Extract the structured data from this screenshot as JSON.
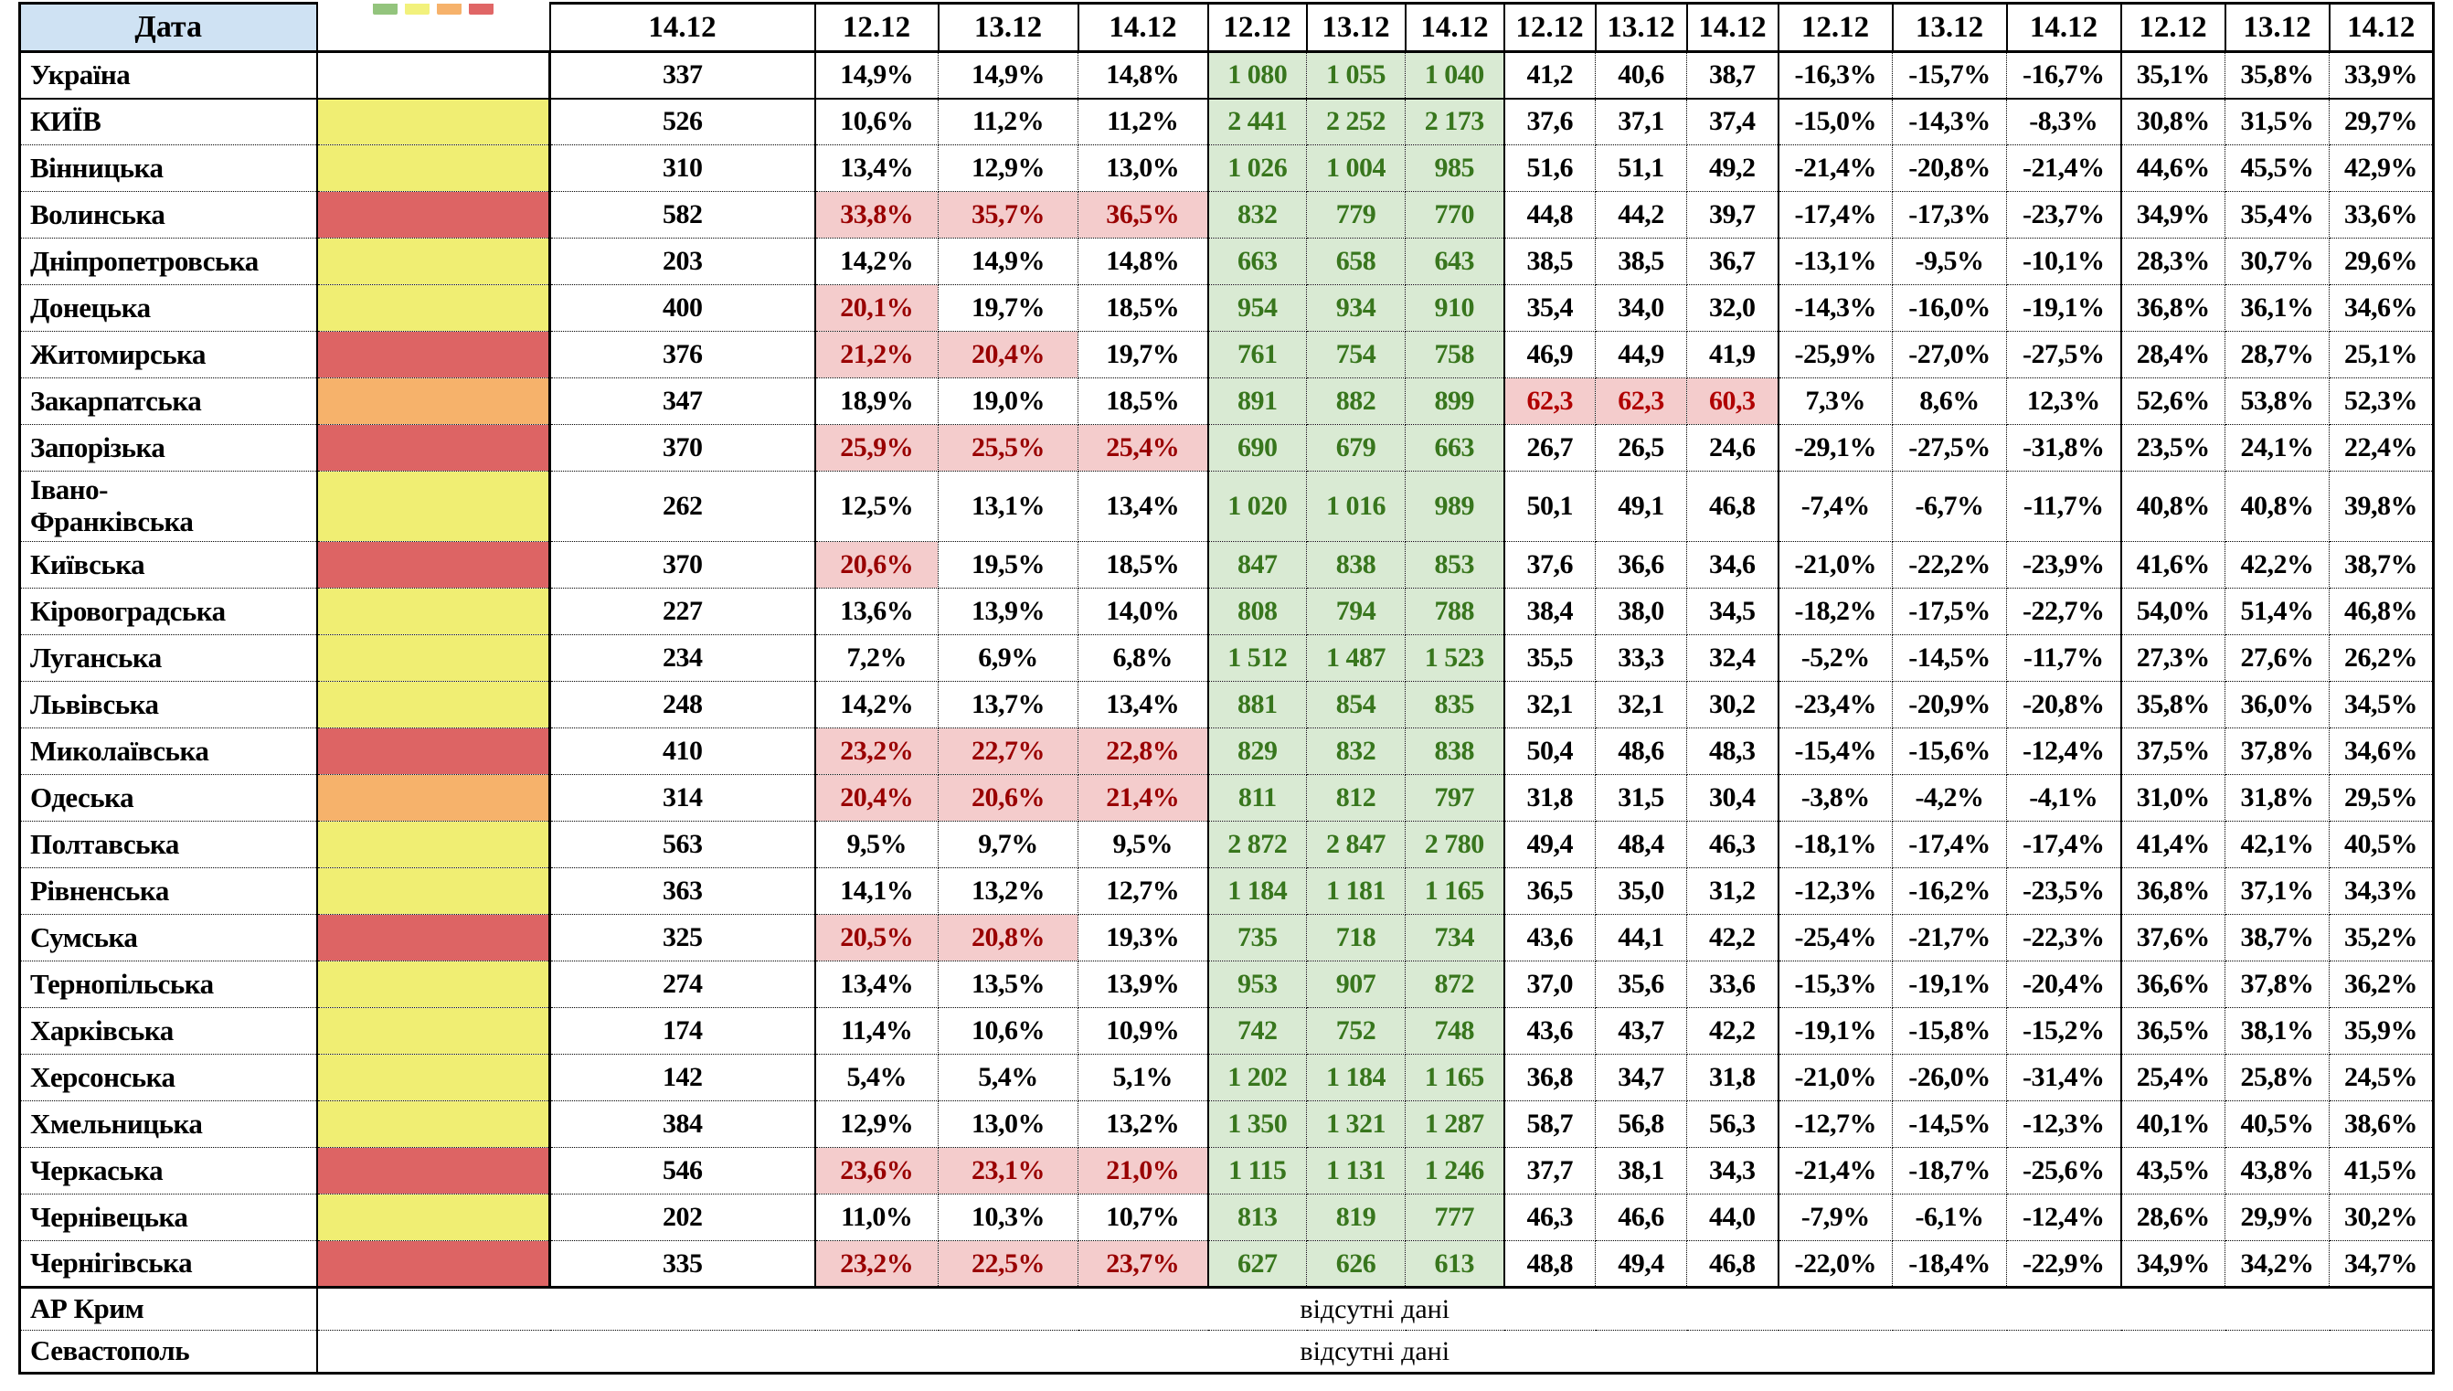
{
  "title_cell": "Дата",
  "no_data_text": "відсутні дані",
  "legend_colors": [
    "#93c47d",
    "#f2f17c",
    "#f6b26b",
    "#e06666"
  ],
  "palette": {
    "header_blue": "#cfe2f3",
    "yellow": "#f0ee73",
    "red": "#dd6464",
    "orange": "#f6b26b",
    "pink": "#f4cccc",
    "green_bg": "#d9ead3",
    "green_text": "#38761d",
    "dark_red_text": "#990000",
    "mid_red_text": "#b00000"
  },
  "thresholds": {
    "pct_hot": 20,
    "mid_hot": 60
  },
  "header": {
    "count_date": "14.12",
    "group_dates": [
      "12.12",
      "13.12",
      "14.12"
    ]
  },
  "total_row": {
    "name": "Україна",
    "color": "none",
    "count": "337",
    "pct": [
      "14,9%",
      "14,9%",
      "14,8%"
    ],
    "cases": [
      "1 080",
      "1 055",
      "1 040"
    ],
    "mid": [
      "41,2",
      "40,6",
      "38,7"
    ],
    "chg": [
      "-16,3%",
      "-15,7%",
      "-16,7%"
    ],
    "share": [
      "35,1%",
      "35,8%",
      "33,9%"
    ]
  },
  "rows": [
    {
      "name": "КИЇВ",
      "color": "yellow",
      "count": "526",
      "pct": [
        "10,6%",
        "11,2%",
        "11,2%"
      ],
      "cases": [
        "2 441",
        "2 252",
        "2 173"
      ],
      "mid": [
        "37,6",
        "37,1",
        "37,4"
      ],
      "chg": [
        "-15,0%",
        "-14,3%",
        "-8,3%"
      ],
      "share": [
        "30,8%",
        "31,5%",
        "29,7%"
      ]
    },
    {
      "name": "Вінницька",
      "color": "yellow",
      "count": "310",
      "pct": [
        "13,4%",
        "12,9%",
        "13,0%"
      ],
      "cases": [
        "1 026",
        "1 004",
        "985"
      ],
      "mid": [
        "51,6",
        "51,1",
        "49,2"
      ],
      "chg": [
        "-21,4%",
        "-20,8%",
        "-21,4%"
      ],
      "share": [
        "44,6%",
        "45,5%",
        "42,9%"
      ]
    },
    {
      "name": "Волинська",
      "color": "red",
      "count": "582",
      "pct": [
        "33,8%",
        "35,7%",
        "36,5%"
      ],
      "cases": [
        "832",
        "779",
        "770"
      ],
      "mid": [
        "44,8",
        "44,2",
        "39,7"
      ],
      "chg": [
        "-17,4%",
        "-17,3%",
        "-23,7%"
      ],
      "share": [
        "34,9%",
        "35,4%",
        "33,6%"
      ]
    },
    {
      "name": "Дніпропетровська",
      "color": "yellow",
      "count": "203",
      "pct": [
        "14,2%",
        "14,9%",
        "14,8%"
      ],
      "cases": [
        "663",
        "658",
        "643"
      ],
      "mid": [
        "38,5",
        "38,5",
        "36,7"
      ],
      "chg": [
        "-13,1%",
        "-9,5%",
        "-10,1%"
      ],
      "share": [
        "28,3%",
        "30,7%",
        "29,6%"
      ]
    },
    {
      "name": "Донецька",
      "color": "yellow",
      "count": "400",
      "pct": [
        "20,1%",
        "19,7%",
        "18,5%"
      ],
      "cases": [
        "954",
        "934",
        "910"
      ],
      "mid": [
        "35,4",
        "34,0",
        "32,0"
      ],
      "chg": [
        "-14,3%",
        "-16,0%",
        "-19,1%"
      ],
      "share": [
        "36,8%",
        "36,1%",
        "34,6%"
      ]
    },
    {
      "name": "Житомирська",
      "color": "red",
      "count": "376",
      "pct": [
        "21,2%",
        "20,4%",
        "19,7%"
      ],
      "cases": [
        "761",
        "754",
        "758"
      ],
      "mid": [
        "46,9",
        "44,9",
        "41,9"
      ],
      "chg": [
        "-25,9%",
        "-27,0%",
        "-27,5%"
      ],
      "share": [
        "28,4%",
        "28,7%",
        "25,1%"
      ]
    },
    {
      "name": "Закарпатська",
      "color": "orange",
      "count": "347",
      "pct": [
        "18,9%",
        "19,0%",
        "18,5%"
      ],
      "cases": [
        "891",
        "882",
        "899"
      ],
      "mid": [
        "62,3",
        "62,3",
        "60,3"
      ],
      "chg": [
        "7,3%",
        "8,6%",
        "12,3%"
      ],
      "share": [
        "52,6%",
        "53,8%",
        "52,3%"
      ]
    },
    {
      "name": "Запорізька",
      "color": "red",
      "count": "370",
      "pct": [
        "25,9%",
        "25,5%",
        "25,4%"
      ],
      "cases": [
        "690",
        "679",
        "663"
      ],
      "mid": [
        "26,7",
        "26,5",
        "24,6"
      ],
      "chg": [
        "-29,1%",
        "-27,5%",
        "-31,8%"
      ],
      "share": [
        "23,5%",
        "24,1%",
        "22,4%"
      ]
    },
    {
      "name": "Івано-\nФранківська",
      "color": "yellow",
      "count": "262",
      "pct": [
        "12,5%",
        "13,1%",
        "13,4%"
      ],
      "cases": [
        "1 020",
        "1 016",
        "989"
      ],
      "mid": [
        "50,1",
        "49,1",
        "46,8"
      ],
      "chg": [
        "-7,4%",
        "-6,7%",
        "-11,7%"
      ],
      "share": [
        "40,8%",
        "40,8%",
        "39,8%"
      ]
    },
    {
      "name": "Київська",
      "color": "red",
      "count": "370",
      "pct": [
        "20,6%",
        "19,5%",
        "18,5%"
      ],
      "cases": [
        "847",
        "838",
        "853"
      ],
      "mid": [
        "37,6",
        "36,6",
        "34,6"
      ],
      "chg": [
        "-21,0%",
        "-22,2%",
        "-23,9%"
      ],
      "share": [
        "41,6%",
        "42,2%",
        "38,7%"
      ]
    },
    {
      "name": "Кіровоградська",
      "color": "yellow",
      "count": "227",
      "pct": [
        "13,6%",
        "13,9%",
        "14,0%"
      ],
      "cases": [
        "808",
        "794",
        "788"
      ],
      "mid": [
        "38,4",
        "38,0",
        "34,5"
      ],
      "chg": [
        "-18,2%",
        "-17,5%",
        "-22,7%"
      ],
      "share": [
        "54,0%",
        "51,4%",
        "46,8%"
      ]
    },
    {
      "name": "Луганська",
      "color": "yellow",
      "count": "234",
      "pct": [
        "7,2%",
        "6,9%",
        "6,8%"
      ],
      "cases": [
        "1 512",
        "1 487",
        "1 523"
      ],
      "mid": [
        "35,5",
        "33,3",
        "32,4"
      ],
      "chg": [
        "-5,2%",
        "-14,5%",
        "-11,7%"
      ],
      "share": [
        "27,3%",
        "27,6%",
        "26,2%"
      ]
    },
    {
      "name": "Львівська",
      "color": "yellow",
      "count": "248",
      "pct": [
        "14,2%",
        "13,7%",
        "13,4%"
      ],
      "cases": [
        "881",
        "854",
        "835"
      ],
      "mid": [
        "32,1",
        "32,1",
        "30,2"
      ],
      "chg": [
        "-23,4%",
        "-20,9%",
        "-20,8%"
      ],
      "share": [
        "35,8%",
        "36,0%",
        "34,5%"
      ]
    },
    {
      "name": "Миколаївська",
      "color": "red",
      "count": "410",
      "pct": [
        "23,2%",
        "22,7%",
        "22,8%"
      ],
      "cases": [
        "829",
        "832",
        "838"
      ],
      "mid": [
        "50,4",
        "48,6",
        "48,3"
      ],
      "chg": [
        "-15,4%",
        "-15,6%",
        "-12,4%"
      ],
      "share": [
        "37,5%",
        "37,8%",
        "34,6%"
      ]
    },
    {
      "name": "Одеська",
      "color": "orange",
      "count": "314",
      "pct": [
        "20,4%",
        "20,6%",
        "21,4%"
      ],
      "cases": [
        "811",
        "812",
        "797"
      ],
      "mid": [
        "31,8",
        "31,5",
        "30,4"
      ],
      "chg": [
        "-3,8%",
        "-4,2%",
        "-4,1%"
      ],
      "share": [
        "31,0%",
        "31,8%",
        "29,5%"
      ]
    },
    {
      "name": "Полтавська",
      "color": "yellow",
      "count": "563",
      "pct": [
        "9,5%",
        "9,7%",
        "9,5%"
      ],
      "cases": [
        "2 872",
        "2 847",
        "2 780"
      ],
      "mid": [
        "49,4",
        "48,4",
        "46,3"
      ],
      "chg": [
        "-18,1%",
        "-17,4%",
        "-17,4%"
      ],
      "share": [
        "41,4%",
        "42,1%",
        "40,5%"
      ]
    },
    {
      "name": "Рівненська",
      "color": "yellow",
      "count": "363",
      "pct": [
        "14,1%",
        "13,2%",
        "12,7%"
      ],
      "cases": [
        "1 184",
        "1 181",
        "1 165"
      ],
      "mid": [
        "36,5",
        "35,0",
        "31,2"
      ],
      "chg": [
        "-12,3%",
        "-16,2%",
        "-23,5%"
      ],
      "share": [
        "36,8%",
        "37,1%",
        "34,3%"
      ]
    },
    {
      "name": "Сумська",
      "color": "red",
      "count": "325",
      "pct": [
        "20,5%",
        "20,8%",
        "19,3%"
      ],
      "cases": [
        "735",
        "718",
        "734"
      ],
      "mid": [
        "43,6",
        "44,1",
        "42,2"
      ],
      "chg": [
        "-25,4%",
        "-21,7%",
        "-22,3%"
      ],
      "share": [
        "37,6%",
        "38,7%",
        "35,2%"
      ]
    },
    {
      "name": "Тернопільська",
      "color": "yellow",
      "count": "274",
      "pct": [
        "13,4%",
        "13,5%",
        "13,9%"
      ],
      "cases": [
        "953",
        "907",
        "872"
      ],
      "mid": [
        "37,0",
        "35,6",
        "33,6"
      ],
      "chg": [
        "-15,3%",
        "-19,1%",
        "-20,4%"
      ],
      "share": [
        "36,6%",
        "37,8%",
        "36,2%"
      ]
    },
    {
      "name": "Харківська",
      "color": "yellow",
      "count": "174",
      "pct": [
        "11,4%",
        "10,6%",
        "10,9%"
      ],
      "cases": [
        "742",
        "752",
        "748"
      ],
      "mid": [
        "43,6",
        "43,7",
        "42,2"
      ],
      "chg": [
        "-19,1%",
        "-15,8%",
        "-15,2%"
      ],
      "share": [
        "36,5%",
        "38,1%",
        "35,9%"
      ]
    },
    {
      "name": "Херсонська",
      "color": "yellow",
      "count": "142",
      "pct": [
        "5,4%",
        "5,4%",
        "5,1%"
      ],
      "cases": [
        "1 202",
        "1 184",
        "1 165"
      ],
      "mid": [
        "36,8",
        "34,7",
        "31,8"
      ],
      "chg": [
        "-21,0%",
        "-26,0%",
        "-31,4%"
      ],
      "share": [
        "25,4%",
        "25,8%",
        "24,5%"
      ]
    },
    {
      "name": "Хмельницька",
      "color": "yellow",
      "count": "384",
      "pct": [
        "12,9%",
        "13,0%",
        "13,2%"
      ],
      "cases": [
        "1 350",
        "1 321",
        "1 287"
      ],
      "mid": [
        "58,7",
        "56,8",
        "56,3"
      ],
      "chg": [
        "-12,7%",
        "-14,5%",
        "-12,3%"
      ],
      "share": [
        "40,1%",
        "40,5%",
        "38,6%"
      ]
    },
    {
      "name": "Черкаська",
      "color": "red",
      "count": "546",
      "pct": [
        "23,6%",
        "23,1%",
        "21,0%"
      ],
      "cases": [
        "1 115",
        "1 131",
        "1 246"
      ],
      "mid": [
        "37,7",
        "38,1",
        "34,3"
      ],
      "chg": [
        "-21,4%",
        "-18,7%",
        "-25,6%"
      ],
      "share": [
        "43,5%",
        "43,8%",
        "41,5%"
      ]
    },
    {
      "name": "Чернівецька",
      "color": "yellow",
      "count": "202",
      "pct": [
        "11,0%",
        "10,3%",
        "10,7%"
      ],
      "cases": [
        "813",
        "819",
        "777"
      ],
      "mid": [
        "46,3",
        "46,6",
        "44,0"
      ],
      "chg": [
        "-7,9%",
        "-6,1%",
        "-12,4%"
      ],
      "share": [
        "28,6%",
        "29,9%",
        "30,2%"
      ]
    },
    {
      "name": "Чернігівська",
      "color": "red",
      "count": "335",
      "pct": [
        "23,2%",
        "22,5%",
        "23,7%"
      ],
      "cases": [
        "627",
        "626",
        "613"
      ],
      "mid": [
        "48,8",
        "49,4",
        "46,8"
      ],
      "chg": [
        "-22,0%",
        "-18,4%",
        "-22,9%"
      ],
      "share": [
        "34,9%",
        "34,2%",
        "34,7%"
      ]
    }
  ],
  "no_data_rows": [
    "АР Крим",
    "Севастополь"
  ]
}
